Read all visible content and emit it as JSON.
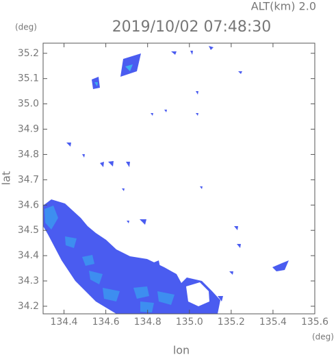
{
  "chart_data": {
    "type": "map",
    "title": "2019/10/02 07:48:30",
    "subtitle": "ALT(km) 2.0",
    "xlabel": "lon",
    "ylabel": "lat",
    "xunit": "(deg)",
    "yunit": "(deg)",
    "xlim": [
      134.3,
      135.6
    ],
    "ylim": [
      34.17,
      35.24
    ],
    "xticks": [
      134.4,
      134.6,
      134.8,
      {
        "value": 135.0,
        "label": "135.0"
      },
      135.2,
      135.4,
      135.6
    ],
    "yticks": [
      {
        "value": 34.2,
        "label": "34.2"
      },
      {
        "value": 34.3,
        "label": "34.3"
      },
      {
        "value": 34.4,
        "label": "34.4"
      },
      {
        "value": 34.5,
        "label": "34.5"
      },
      {
        "value": 34.6,
        "label": "34.6"
      },
      {
        "value": 34.7,
        "label": "34.7"
      },
      {
        "value": 34.8,
        "label": "34.8"
      },
      {
        "value": 34.9,
        "label": "34.9"
      },
      {
        "value": 35.0,
        "label": "35.0"
      },
      {
        "value": 35.1,
        "label": "35.1"
      },
      {
        "value": 35.2,
        "label": "35.2"
      }
    ]
  }
}
